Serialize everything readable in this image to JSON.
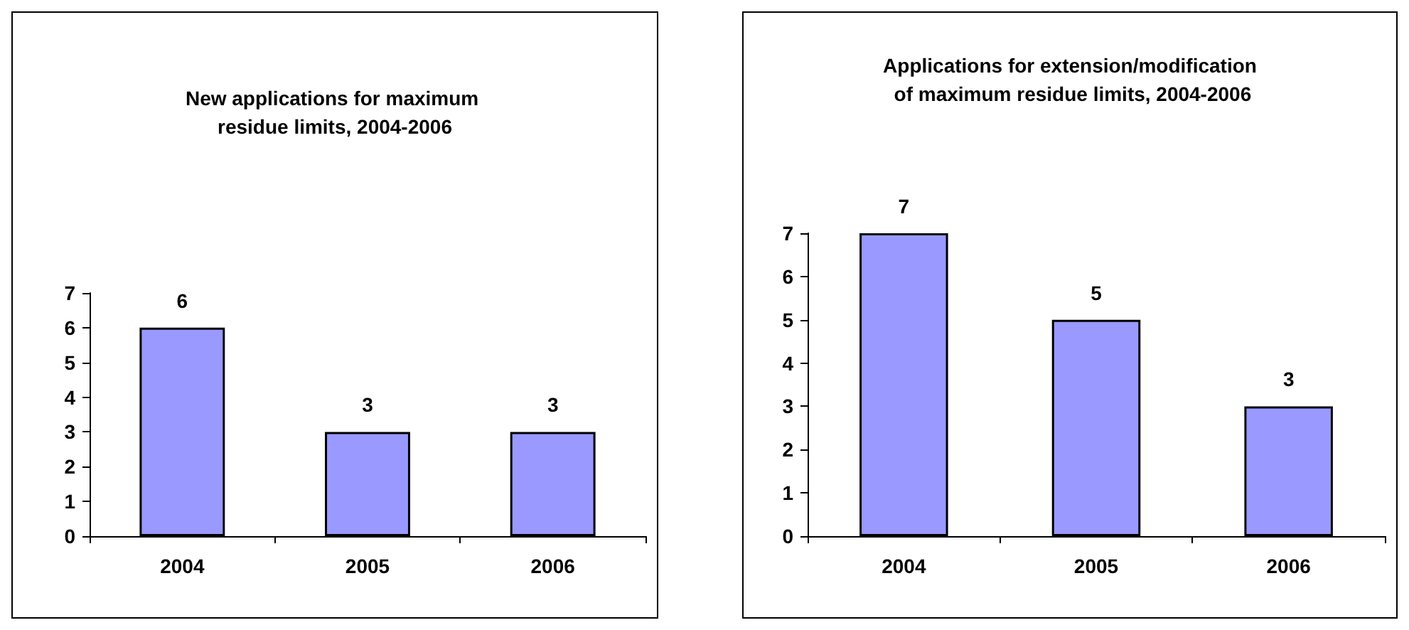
{
  "chart_data": [
    {
      "type": "bar",
      "title": "New applications for maximum residue limits, 2004-2006",
      "categories": [
        "2004",
        "2005",
        "2006"
      ],
      "values": [
        6,
        3,
        3
      ],
      "color": "#9999ff",
      "ylim": [
        0,
        7
      ],
      "yticks": [
        0,
        1,
        2,
        3,
        4,
        5,
        6,
        7
      ],
      "data_labels": true
    },
    {
      "type": "bar",
      "title": "Applications for extension/modification of maximum residue limits, 2004-2006",
      "categories": [
        "2004",
        "2005",
        "2006"
      ],
      "values": [
        7,
        5,
        3
      ],
      "color": "#9999ff",
      "ylim": [
        0,
        7
      ],
      "yticks": [
        0,
        1,
        2,
        3,
        4,
        5,
        6,
        7
      ],
      "data_labels": true
    }
  ]
}
